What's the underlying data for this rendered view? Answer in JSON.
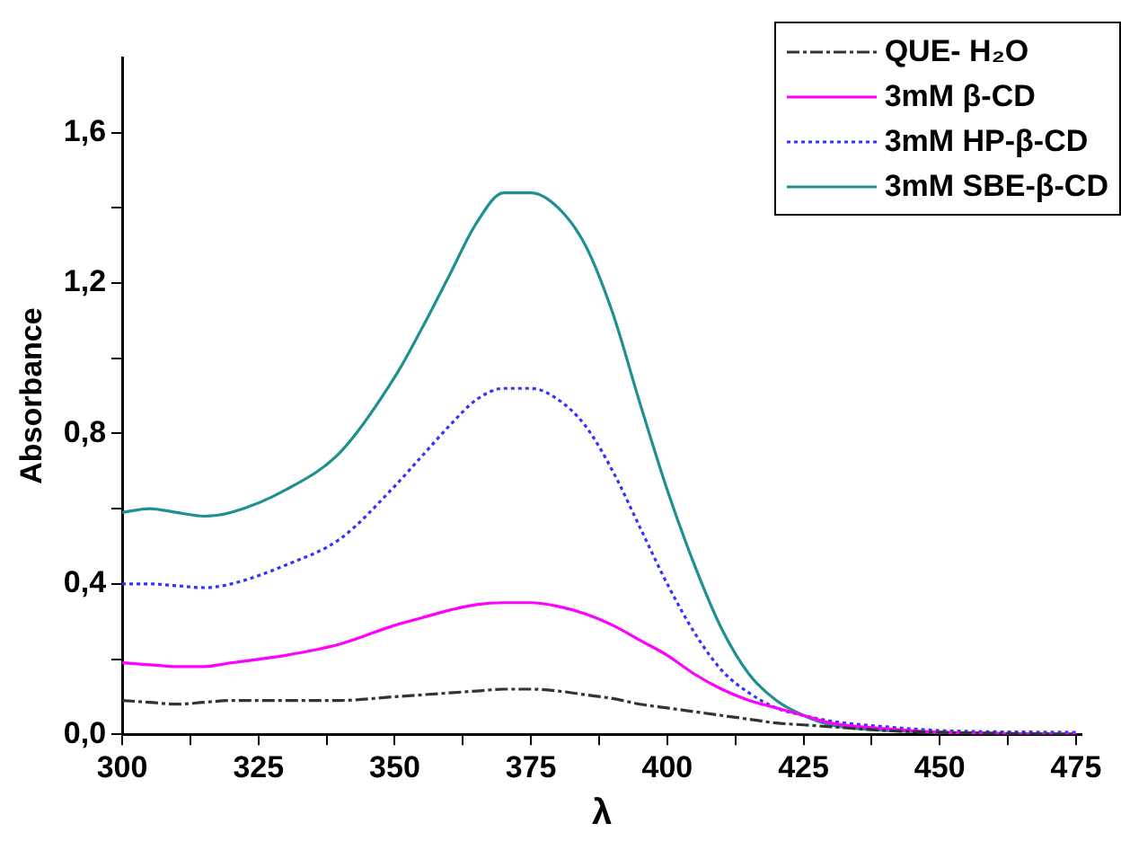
{
  "chart_data": {
    "type": "line",
    "xlabel": "λ",
    "ylabel": "Absorbance",
    "xlim": [
      300,
      476
    ],
    "ylim": [
      0,
      1.8
    ],
    "xticks": [
      300,
      {
        "value": 312.5,
        "label": null
      },
      325,
      {
        "value": 337.5,
        "label": null
      },
      350,
      {
        "value": 362.5,
        "label": null
      },
      375,
      {
        "value": 387.5,
        "label": null
      },
      400,
      {
        "value": 412.5,
        "label": null
      },
      425,
      {
        "value": 437.5,
        "label": null
      },
      450,
      {
        "value": 462.5,
        "label": null
      },
      475
    ],
    "yticks": [
      {
        "value": 0,
        "label": "0,0"
      },
      {
        "value": 0.2,
        "label": null
      },
      {
        "value": 0.4,
        "label": "0,4"
      },
      {
        "value": 0.6,
        "label": null
      },
      {
        "value": 0.8,
        "label": "0,8"
      },
      {
        "value": 1.0,
        "label": null
      },
      {
        "value": 1.2,
        "label": "1,2"
      },
      {
        "value": 1.4,
        "label": null
      },
      {
        "value": 1.6,
        "label": "1,6"
      }
    ],
    "grid": false,
    "legend": "top right",
    "marker": "none",
    "x": [
      300,
      305,
      310,
      315,
      320,
      330,
      340,
      350,
      355,
      360,
      365,
      370,
      375,
      380,
      385,
      390,
      395,
      400,
      405,
      410,
      415,
      420,
      425,
      430,
      440,
      450,
      475
    ],
    "series": [
      {
        "name": "QUE- H₂O",
        "color": "#333333",
        "line_style": "dashed",
        "values": [
          0.09,
          0.085,
          0.08,
          0.085,
          0.09,
          0.09,
          0.09,
          0.1,
          0.105,
          0.11,
          0.115,
          0.12,
          0.12,
          0.115,
          0.105,
          0.095,
          0.08,
          0.07,
          0.06,
          0.05,
          0.04,
          0.03,
          0.025,
          0.02,
          0.01,
          0.005,
          0
        ]
      },
      {
        "name": "3mM β-CD",
        "color": "#ff00ff",
        "line_style": "solid",
        "values": [
          0.19,
          0.185,
          0.18,
          0.18,
          0.19,
          0.21,
          0.24,
          0.29,
          0.31,
          0.33,
          0.345,
          0.35,
          0.35,
          0.34,
          0.32,
          0.29,
          0.25,
          0.21,
          0.16,
          0.12,
          0.09,
          0.07,
          0.05,
          0.03,
          0.015,
          0.005,
          0
        ]
      },
      {
        "name": "3mM HP-β-CD",
        "color": "#3333ff",
        "line_style": "dotted",
        "values": [
          0.4,
          0.4,
          0.395,
          0.39,
          0.4,
          0.45,
          0.52,
          0.66,
          0.74,
          0.82,
          0.89,
          0.92,
          0.92,
          0.89,
          0.82,
          0.7,
          0.55,
          0.4,
          0.27,
          0.17,
          0.11,
          0.07,
          0.05,
          0.035,
          0.02,
          0.01,
          0.005
        ]
      },
      {
        "name": "3mM SBE-β-CD",
        "color": "#1e9090",
        "line_style": "solid",
        "values": [
          0.59,
          0.6,
          0.59,
          0.58,
          0.59,
          0.65,
          0.75,
          0.95,
          1.08,
          1.22,
          1.36,
          1.44,
          1.44,
          1.4,
          1.3,
          1.12,
          0.88,
          0.65,
          0.45,
          0.28,
          0.16,
          0.09,
          0.05,
          0.025,
          0.01,
          0.005,
          0
        ]
      }
    ]
  }
}
